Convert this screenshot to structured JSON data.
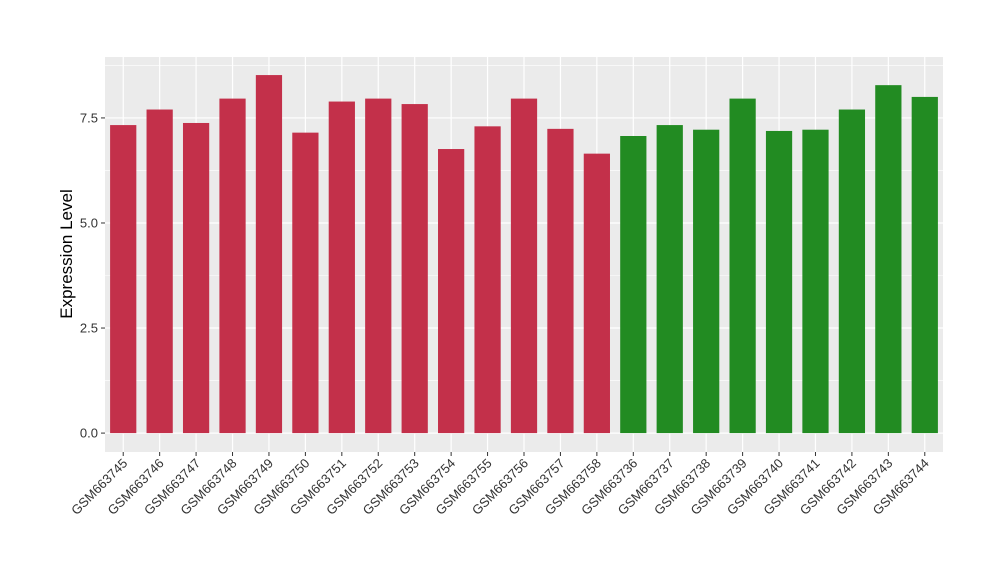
{
  "chart_data": {
    "type": "bar",
    "title": "",
    "xlabel": "",
    "ylabel": "Expression Level",
    "ylim": [
      -0.45,
      8.95
    ],
    "yticks": [
      0.0,
      2.5,
      5.0,
      7.5
    ],
    "ytick_labels": [
      "0.0",
      "2.5",
      "5.0",
      "7.5"
    ],
    "grid": true,
    "legend": "none",
    "categories": [
      "GSM663745",
      "GSM663746",
      "GSM663747",
      "GSM663748",
      "GSM663749",
      "GSM663750",
      "GSM663751",
      "GSM663752",
      "GSM663753",
      "GSM663754",
      "GSM663755",
      "GSM663756",
      "GSM663757",
      "GSM663758",
      "GSM663736",
      "GSM663737",
      "GSM663738",
      "GSM663739",
      "GSM663740",
      "GSM663741",
      "GSM663742",
      "GSM663743",
      "GSM663744"
    ],
    "values": [
      7.33,
      7.7,
      7.38,
      7.96,
      8.52,
      7.15,
      7.89,
      7.96,
      7.83,
      6.76,
      7.3,
      7.96,
      7.24,
      6.65,
      7.07,
      7.33,
      7.22,
      7.96,
      7.19,
      7.22,
      7.7,
      8.28,
      8.0
    ],
    "bar_colors": [
      "#C3304A",
      "#C3304A",
      "#C3304A",
      "#C3304A",
      "#C3304A",
      "#C3304A",
      "#C3304A",
      "#C3304A",
      "#C3304A",
      "#C3304A",
      "#C3304A",
      "#C3304A",
      "#C3304A",
      "#C3304A",
      "#228B22",
      "#228B22",
      "#228B22",
      "#228B22",
      "#228B22",
      "#228B22",
      "#228B22",
      "#228B22",
      "#228B22"
    ],
    "panel_background": "#EBEBEB",
    "grid_color": "#FFFFFF"
  }
}
